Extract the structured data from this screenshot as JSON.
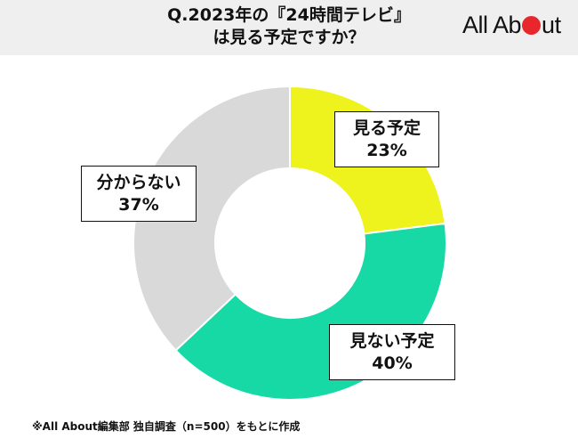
{
  "header": {
    "title_line1": "Q.2023年の『24時間テレビ』",
    "title_line2": "は見る予定ですか？",
    "logo_text_1": "All Ab",
    "logo_text_2": "ut"
  },
  "chart_data": {
    "type": "pie",
    "title": "Q.2023年の『24時間テレビ』は見る予定ですか？",
    "categories": [
      "見る予定",
      "見ない予定",
      "分からない"
    ],
    "values": [
      23,
      40,
      37
    ],
    "labels": [
      "23%",
      "40%",
      "37%"
    ],
    "colors": [
      "#eef21d",
      "#17d9a6",
      "#d9d9d9"
    ],
    "donut": true,
    "start": "12 o'clock",
    "direction": "clockwise"
  },
  "footnote": "※All About編集部 独自調査（n=500）をもとに作成"
}
